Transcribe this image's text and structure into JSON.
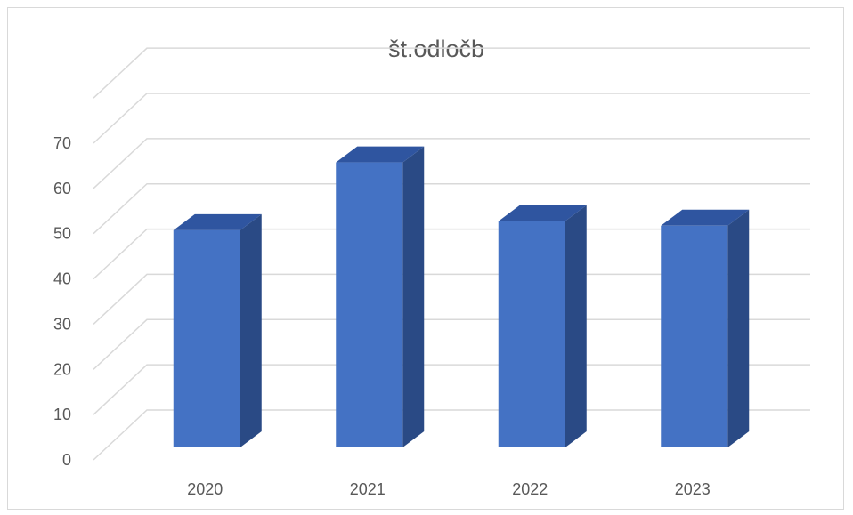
{
  "chart_data": {
    "type": "bar",
    "title": "št.odločb",
    "xlabel": "",
    "ylabel": "",
    "categories": [
      "2020",
      "2021",
      "2022",
      "2023"
    ],
    "values": [
      48,
      63,
      50,
      49
    ],
    "ylim": [
      0,
      70
    ],
    "yticks": [
      "0",
      "10",
      "20",
      "30",
      "40",
      "50",
      "60",
      "70"
    ],
    "grid": true,
    "legend": "none",
    "style": "3d-column",
    "colors": {
      "bar_front": "#4472c4",
      "bar_top": "#2f55a0",
      "bar_side": "#2a4a85",
      "grid": "#d9d9d9",
      "text": "#595959"
    }
  }
}
